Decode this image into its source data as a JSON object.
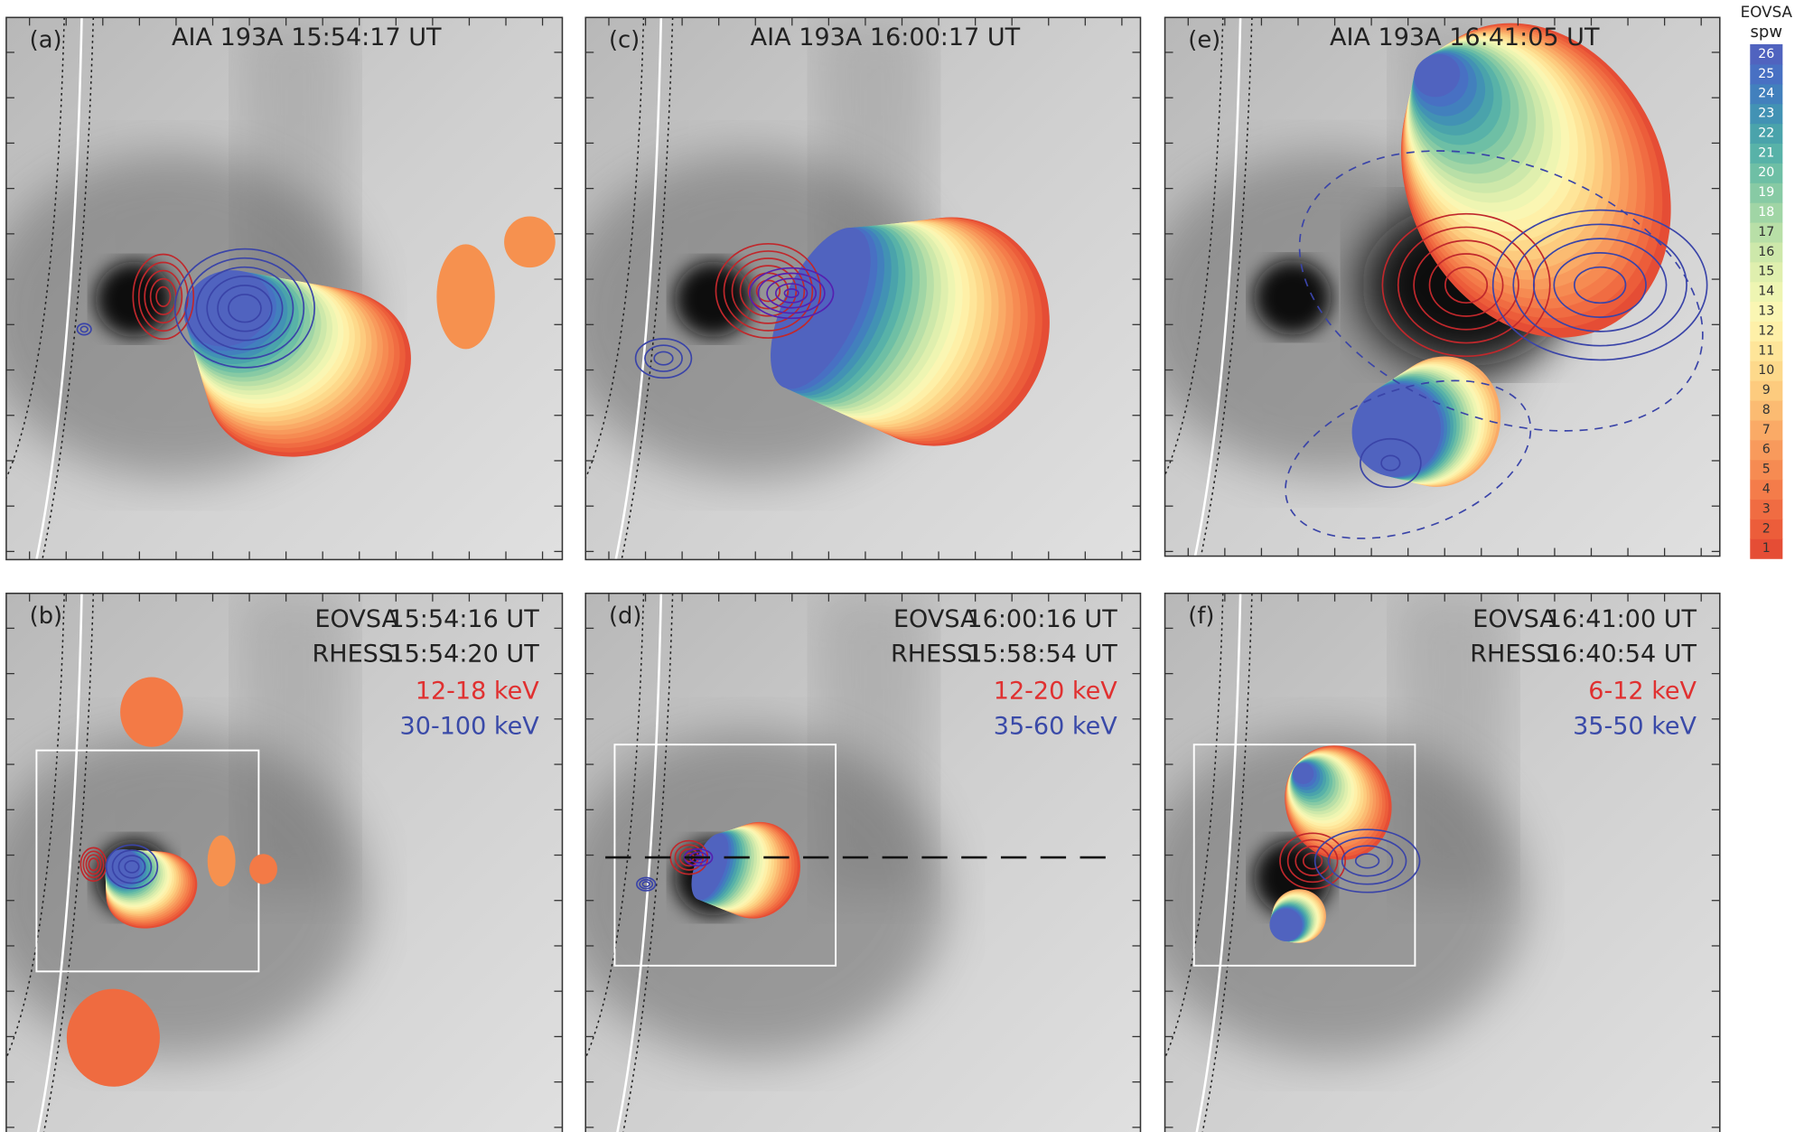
{
  "panels": [
    {
      "label": "(a)",
      "title": "AIA 193A  15:54:17 UT"
    },
    {
      "label": "(b)",
      "rows": [
        [
          "EOVSA",
          "15:54:16 UT"
        ],
        [
          "RHESSI",
          "15:54:20 UT"
        ]
      ],
      "red_band": "12-18 keV",
      "blue_band": "30-100 keV"
    },
    {
      "label": "(c)",
      "title": "AIA 193A  16:00:17 UT"
    },
    {
      "label": "(d)",
      "rows": [
        [
          "EOVSA",
          "16:00:16 UT"
        ],
        [
          "RHESSI",
          "15:58:54 UT"
        ]
      ],
      "red_band": "12-20 keV",
      "blue_band": "35-60 keV"
    },
    {
      "label": "(e)",
      "title": "AIA 193A  16:41:05 UT"
    },
    {
      "label": "(f)",
      "rows": [
        [
          "EOVSA",
          "16:41:00 UT"
        ],
        [
          "RHESSI",
          "16:40:54 UT"
        ]
      ],
      "red_band": "6-12 keV",
      "blue_band": "35-50 keV"
    }
  ],
  "colorbar": {
    "title": "EOVSA",
    "subtitle": "spw",
    "ticks": [
      1,
      2,
      3,
      4,
      5,
      6,
      7,
      8,
      9,
      10,
      11,
      12,
      13,
      14,
      15,
      16,
      17,
      18,
      19,
      20,
      21,
      22,
      23,
      24,
      25,
      26
    ],
    "colors": [
      "#e54d35",
      "#ec5d3a",
      "#f06c42",
      "#f47c4a",
      "#f68b52",
      "#f89a5c",
      "#faaa66",
      "#fbbb72",
      "#fdcb7e",
      "#fdd98b",
      "#fee599",
      "#fef0a8",
      "#faf6b3",
      "#eef5b2",
      "#dfefae",
      "#cde8aa",
      "#b8dfa7",
      "#a0d5a5",
      "#87caa4",
      "#6ebfa5",
      "#58b2a8",
      "#4aa3ab",
      "#4292b4",
      "#4280bd",
      "#4870c3",
      "#5063bf"
    ]
  }
}
